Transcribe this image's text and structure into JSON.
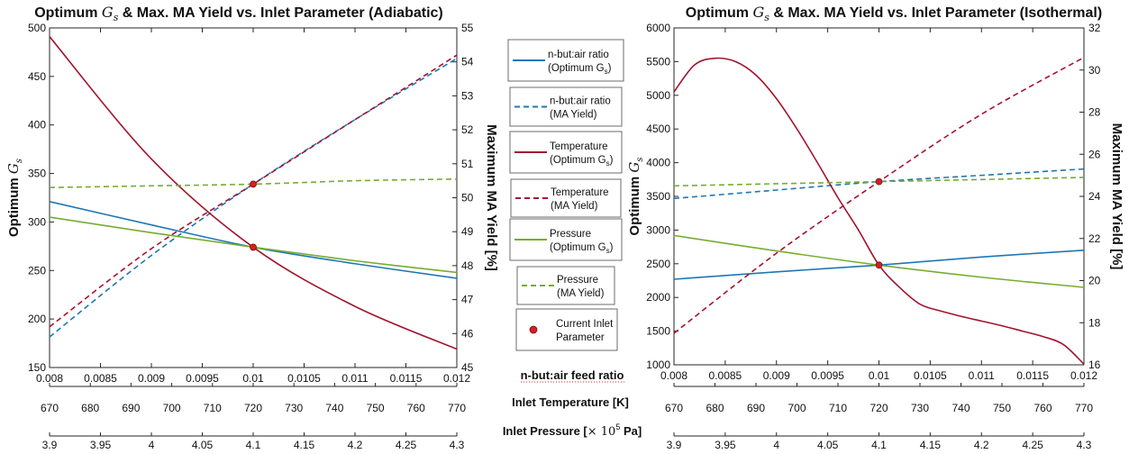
{
  "chart_data": [
    {
      "type": "line",
      "title_pre": "Optimum ",
      "title_sym": "G",
      "title_sub": "s",
      "title_post": " & Max. MA Yield vs. Inlet Parameter (Adiabatic)",
      "ylabel_left_pre": "Optimum ",
      "ylabel_left_sym": "G",
      "ylabel_left_sub": "s",
      "ylabel_right": "Maximum MA Yield [%]",
      "x": [
        0.008,
        0.009,
        0.01,
        0.011,
        0.012
      ],
      "x_ticks": [
        "0.008",
        "0.0085",
        "0.009",
        "0.0095",
        "0.01",
        "0.0105",
        "0.011",
        "0.0115",
        "0.012"
      ],
      "temp_ticks": [
        "670",
        "680",
        "690",
        "700",
        "710",
        "720",
        "730",
        "740",
        "750",
        "760",
        "770"
      ],
      "pressure_ticks": [
        "3.9",
        "3.95",
        "4",
        "4.05",
        "4.1",
        "4.15",
        "4.2",
        "4.25",
        "4.3"
      ],
      "ylim_left": [
        150,
        500
      ],
      "yticks_left": [
        "150",
        "200",
        "250",
        "300",
        "350",
        "400",
        "450",
        "500"
      ],
      "ylim_right": [
        45,
        55
      ],
      "yticks_right": [
        "45",
        "46",
        "47",
        "48",
        "49",
        "50",
        "51",
        "52",
        "53",
        "54",
        "55"
      ],
      "series": [
        {
          "name": "n-but:air ratio (Optimum Gs)",
          "axis": "left",
          "color": "#1f77b4",
          "dash": false,
          "values": [
            321,
            297,
            274,
            257,
            242
          ]
        },
        {
          "name": "n-but:air ratio (MA Yield)",
          "axis": "right",
          "color": "#1f77b4",
          "dash": true,
          "values": [
            45.9,
            48.3,
            50.4,
            52.3,
            54.1
          ]
        },
        {
          "name": "Temperature (Optimum Gs)",
          "axis": "left",
          "color": "#a2142f",
          "dash": false,
          "values": [
            491,
            365,
            274,
            213,
            169
          ]
        },
        {
          "name": "Temperature (MA Yield)",
          "axis": "right",
          "color": "#a2142f",
          "dash": true,
          "values": [
            46.2,
            48.5,
            50.4,
            52.3,
            54.2
          ]
        },
        {
          "name": "Pressure (Optimum Gs)",
          "axis": "left",
          "color": "#77ac30",
          "dash": false,
          "values": [
            305,
            289,
            274,
            260,
            248
          ]
        },
        {
          "name": "Pressure (MA Yield)",
          "axis": "right",
          "color": "#77ac30",
          "dash": true,
          "values": [
            50.3,
            50.35,
            50.4,
            50.5,
            50.55
          ]
        }
      ],
      "current_points": [
        {
          "axis": "left",
          "x": 0.01,
          "y": 274
        },
        {
          "axis": "right",
          "x": 0.01,
          "y": 50.4
        }
      ]
    },
    {
      "type": "line",
      "title_pre": "Optimum ",
      "title_sym": "G",
      "title_sub": "s",
      "title_post": " & Max. MA Yield vs. Inlet Parameter (Isothermal)",
      "ylabel_left_pre": "Optimum ",
      "ylabel_left_sym": "G",
      "ylabel_left_sub": "s",
      "ylabel_right": "Maximum MA Yield [%]",
      "x": [
        0.008,
        0.009,
        0.01,
        0.011,
        0.012
      ],
      "x_ticks": [
        "0.008",
        "0.0085",
        "0.009",
        "0.0095",
        "0.01",
        "0.0105",
        "0.011",
        "0.0115",
        "0.012"
      ],
      "temp_ticks": [
        "670",
        "680",
        "690",
        "700",
        "710",
        "720",
        "730",
        "740",
        "750",
        "760",
        "770"
      ],
      "pressure_ticks": [
        "3.9",
        "3.95",
        "4",
        "4.05",
        "4.1",
        "4.15",
        "4.2",
        "4.25",
        "4.3"
      ],
      "ylim_left": [
        1000,
        6000
      ],
      "yticks_left": [
        "1000",
        "1500",
        "2000",
        "2500",
        "3000",
        "3500",
        "4000",
        "4500",
        "5000",
        "5500",
        "6000"
      ],
      "ylim_right": [
        16,
        32
      ],
      "yticks_right": [
        "16",
        "18",
        "20",
        "22",
        "24",
        "26",
        "28",
        "30",
        "32"
      ],
      "series": [
        {
          "name": "n-but:air ratio (Optimum Gs)",
          "axis": "left",
          "color": "#1f77b4",
          "dash": false,
          "values": [
            2270,
            2380,
            2480,
            2600,
            2700
          ]
        },
        {
          "name": "n-but:air ratio (MA Yield)",
          "axis": "right",
          "color": "#1f77b4",
          "dash": true,
          "values": [
            23.9,
            24.3,
            24.7,
            25.0,
            25.3
          ]
        },
        {
          "name": "Temperature (Optimum Gs)",
          "axis": "left",
          "color": "#a2142f",
          "dash": false,
          "x": [
            0.008,
            0.0082,
            0.0084,
            0.0086,
            0.0088,
            0.009,
            0.0092,
            0.0094,
            0.0096,
            0.0098,
            0.01,
            0.0102,
            0.0104,
            0.0106,
            0.0108,
            0.011,
            0.0112,
            0.0114,
            0.0116,
            0.0118,
            0.012
          ],
          "values": [
            5050,
            5450,
            5550,
            5500,
            5300,
            4950,
            4500,
            4000,
            3480,
            3000,
            2480,
            2150,
            1900,
            1800,
            1720,
            1650,
            1580,
            1500,
            1420,
            1300,
            1010
          ]
        },
        {
          "name": "Temperature (MA Yield)",
          "axis": "right",
          "color": "#a2142f",
          "dash": true,
          "values": [
            17.5,
            21.3,
            24.7,
            27.9,
            30.6
          ]
        },
        {
          "name": "Pressure (Optimum Gs)",
          "axis": "left",
          "color": "#77ac30",
          "dash": false,
          "values": [
            2920,
            2690,
            2480,
            2300,
            2150
          ]
        },
        {
          "name": "Pressure (MA Yield)",
          "axis": "right",
          "color": "#77ac30",
          "dash": true,
          "values": [
            24.5,
            24.6,
            24.7,
            24.8,
            24.9
          ]
        }
      ],
      "current_points": [
        {
          "axis": "left",
          "x": 0.01,
          "y": 2480
        },
        {
          "axis": "right",
          "x": 0.01,
          "y": 24.7
        }
      ]
    }
  ],
  "middle": {
    "legend": [
      {
        "line1": "n-but:air ratio",
        "line2_pre": "(Optimum G",
        "line2_sub": "s",
        "line2_post": ")",
        "color": "#1f77b4",
        "dash": false,
        "marker": false
      },
      {
        "line1": "n-but:air ratio",
        "line2_pre": "(MA Yield)",
        "line2_sub": "",
        "line2_post": "",
        "color": "#1f77b4",
        "dash": true,
        "marker": false
      },
      {
        "line1": "Temperature",
        "line2_pre": "(Optimum G",
        "line2_sub": "s",
        "line2_post": ")",
        "color": "#a2142f",
        "dash": false,
        "marker": false
      },
      {
        "line1": "Temperature",
        "line2_pre": "(MA Yield)",
        "line2_sub": "",
        "line2_post": "",
        "color": "#a2142f",
        "dash": true,
        "marker": false
      },
      {
        "line1": "Pressure",
        "line2_pre": "(Optimum G",
        "line2_sub": "s",
        "line2_post": ")",
        "color": "#77ac30",
        "dash": false,
        "marker": false
      },
      {
        "line1": "Pressure",
        "line2_pre": "(MA Yield)",
        "line2_sub": "",
        "line2_post": "",
        "color": "#77ac30",
        "dash": true,
        "marker": false
      },
      {
        "line1": "Current Inlet",
        "line2_pre": "Parameter",
        "line2_sub": "",
        "line2_post": "",
        "color": "#d42020",
        "dash": false,
        "marker": true
      }
    ],
    "axis_labels": {
      "ratio": "n-but:air feed ratio",
      "temperature": "Inlet Temperature [K]",
      "pressure_pre": "Inlet Pressure [",
      "pressure_mid": "× 10",
      "pressure_sup": "5",
      "pressure_post": " Pa]"
    }
  }
}
